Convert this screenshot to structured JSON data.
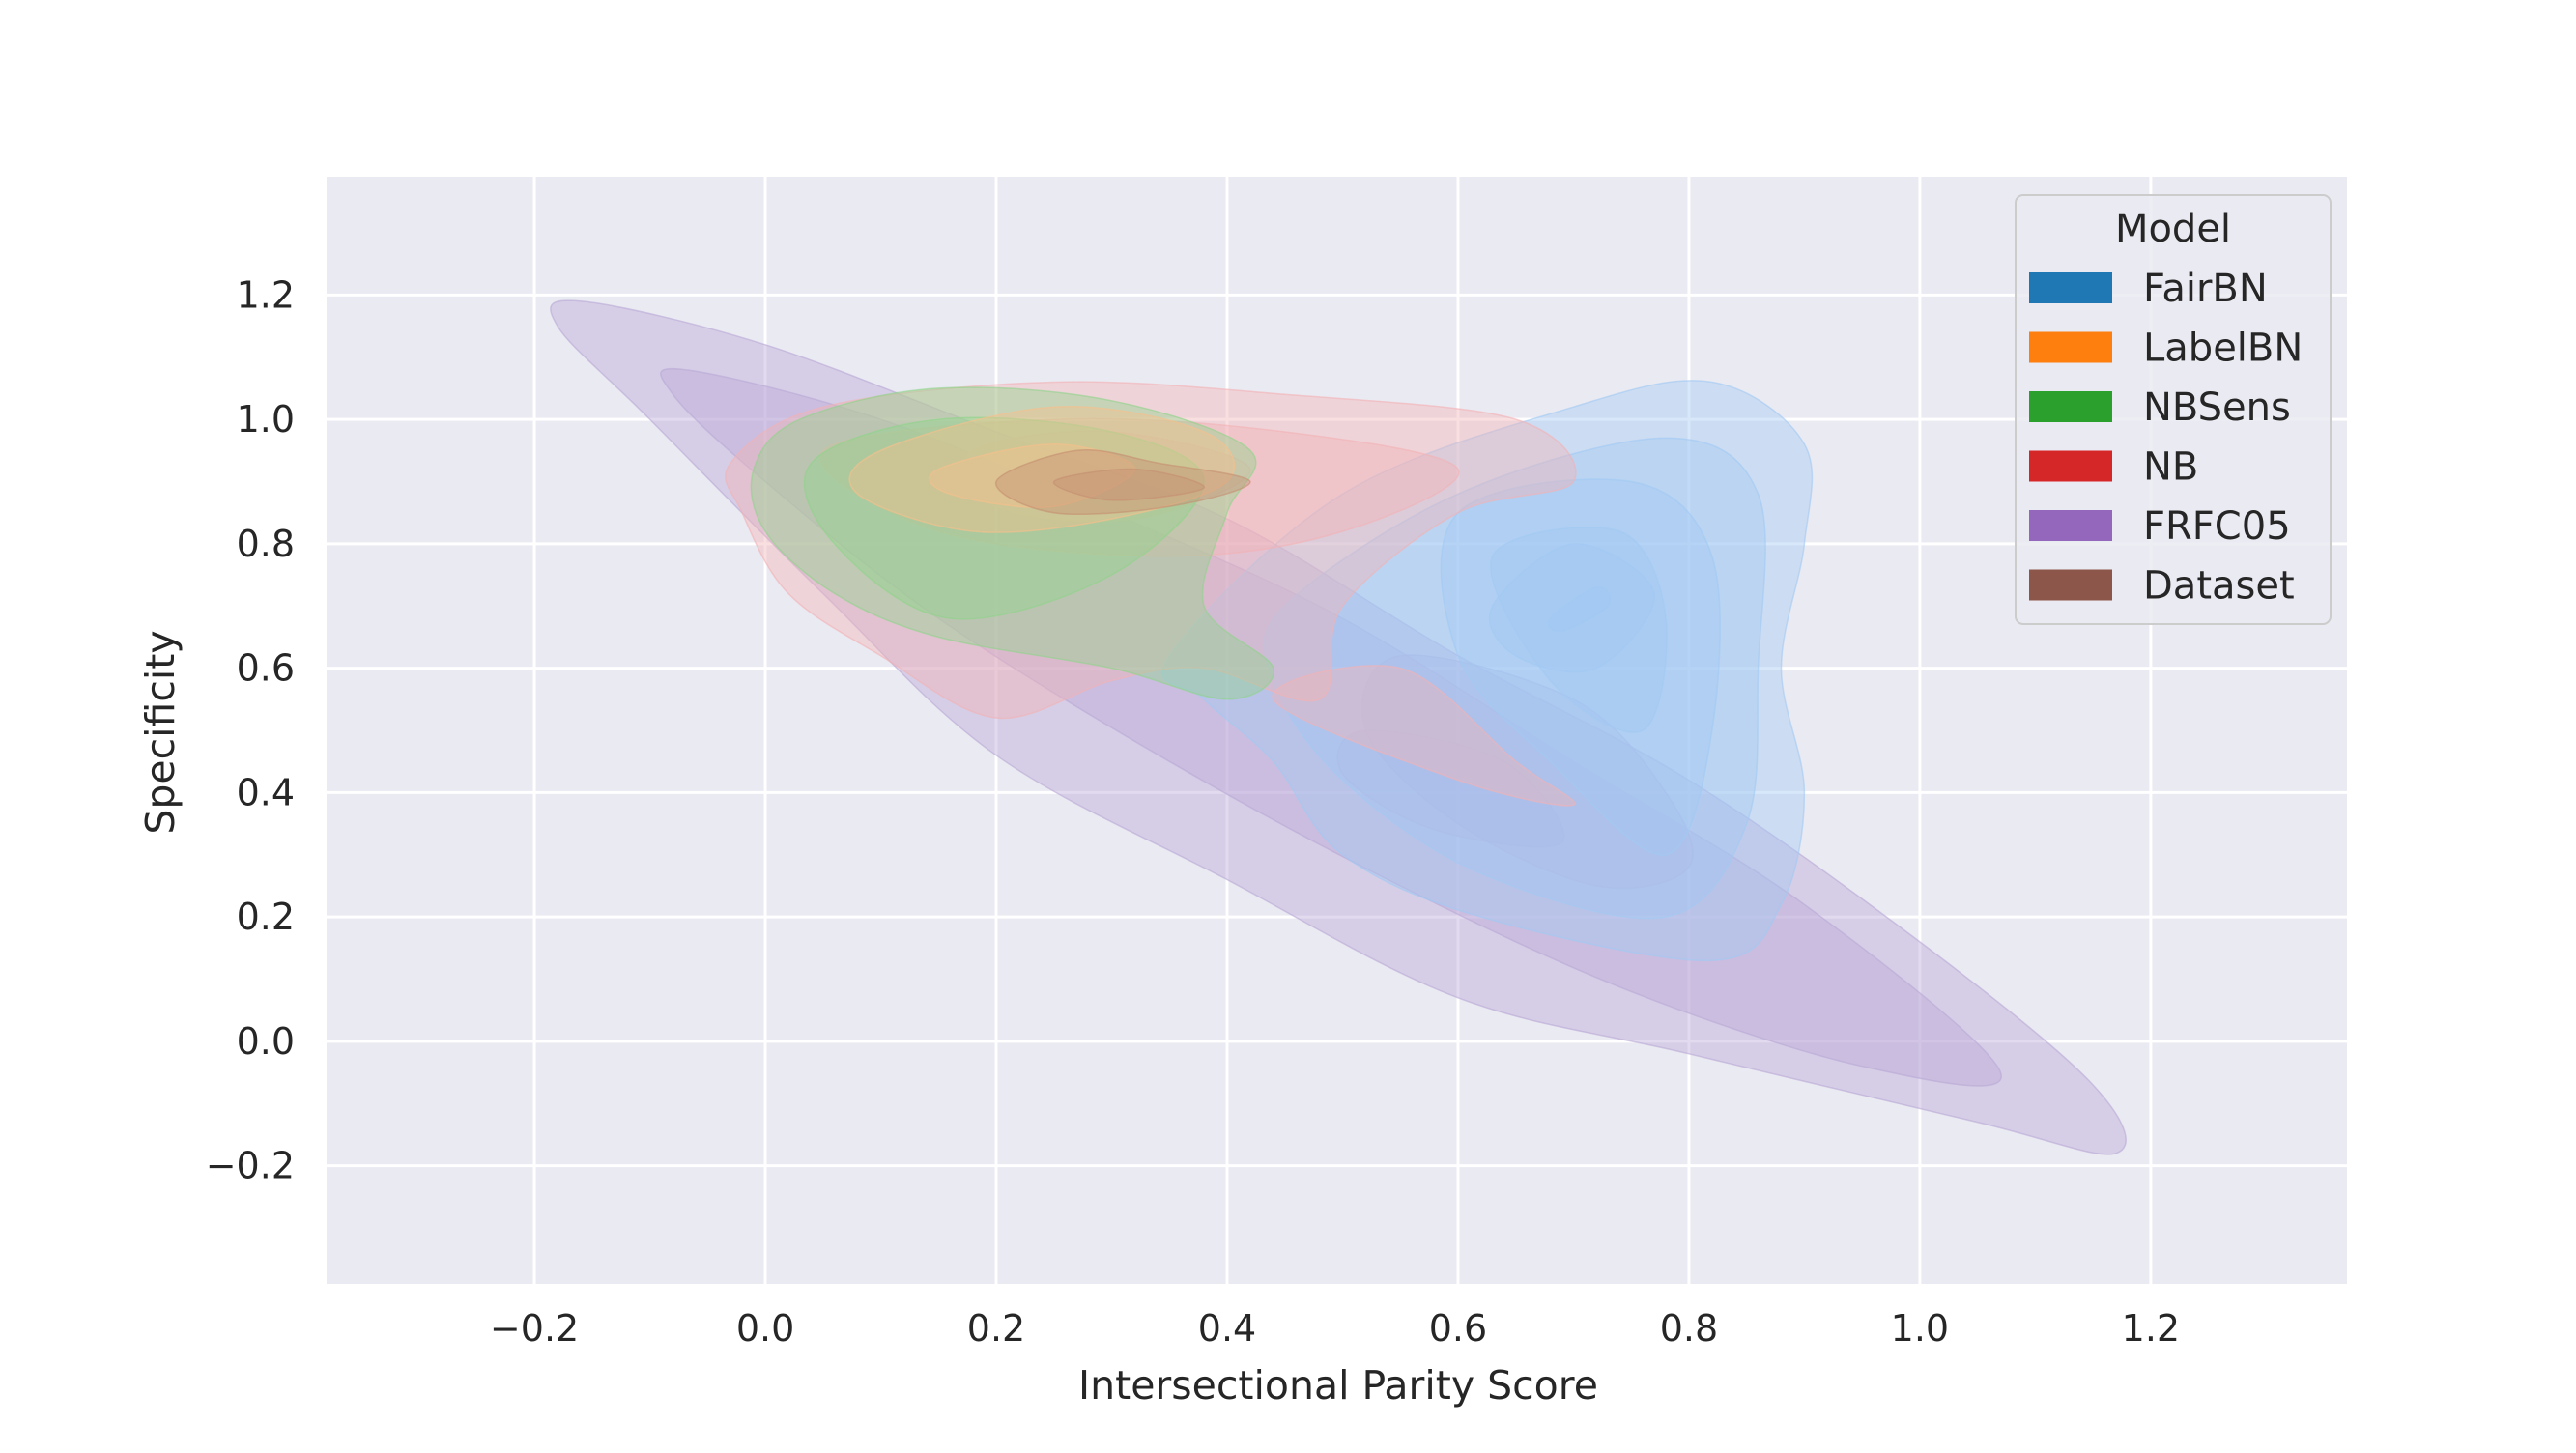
{
  "chart_data": {
    "type": "kde_contour",
    "title": "",
    "xlabel": "Intersectional Parity Score",
    "ylabel": "Specificity",
    "xlim": [
      -0.38,
      1.37
    ],
    "ylim": [
      -0.39,
      1.39
    ],
    "xticks": [
      -0.2,
      0.0,
      0.2,
      0.4,
      0.6,
      0.8,
      1.0,
      1.2
    ],
    "xtick_labels": [
      "−0.2",
      "0.0",
      "0.2",
      "0.4",
      "0.6",
      "0.8",
      "1.0",
      "1.2"
    ],
    "yticks": [
      -0.2,
      0.0,
      0.2,
      0.4,
      0.6,
      0.8,
      1.0,
      1.2
    ],
    "ytick_labels": [
      "−0.2",
      "0.0",
      "0.2",
      "0.4",
      "0.6",
      "0.8",
      "1.0",
      "1.2"
    ],
    "grid": true,
    "background": "#eaeaf2",
    "legend": {
      "title": "Model",
      "placement": "top-right",
      "entries": [
        {
          "name": "FairBN",
          "color": "#1f77b4"
        },
        {
          "name": "LabelBN",
          "color": "#ff7f0e"
        },
        {
          "name": "NBSens",
          "color": "#2ca02c"
        },
        {
          "name": "NB",
          "color": "#d62728"
        },
        {
          "name": "FRFC05",
          "color": "#9467bd"
        },
        {
          "name": "Dataset",
          "color": "#8c564b"
        }
      ]
    },
    "series": [
      {
        "name": "FRFC05",
        "color": "#b9a8d6",
        "levels": [
          [
            [
              -0.16,
              1.19
            ],
            [
              0.0,
              1.12
            ],
            [
              0.2,
              0.98
            ],
            [
              0.4,
              0.84
            ],
            [
              0.6,
              0.62
            ],
            [
              0.8,
              0.42
            ],
            [
              1.0,
              0.16
            ],
            [
              1.15,
              -0.07
            ],
            [
              1.17,
              -0.18
            ],
            [
              1.05,
              -0.13
            ],
            [
              0.8,
              -0.02
            ],
            [
              0.6,
              0.07
            ],
            [
              0.4,
              0.26
            ],
            [
              0.2,
              0.46
            ],
            [
              0.05,
              0.72
            ],
            [
              -0.1,
              1.0
            ],
            [
              -0.18,
              1.15
            ]
          ],
          [
            [
              -0.07,
              1.08
            ],
            [
              0.1,
              1.0
            ],
            [
              0.3,
              0.85
            ],
            [
              0.5,
              0.68
            ],
            [
              0.7,
              0.45
            ],
            [
              0.9,
              0.22
            ],
            [
              1.07,
              -0.05
            ],
            [
              0.95,
              -0.04
            ],
            [
              0.75,
              0.08
            ],
            [
              0.55,
              0.25
            ],
            [
              0.35,
              0.45
            ],
            [
              0.15,
              0.68
            ],
            [
              0.0,
              0.9
            ],
            [
              -0.08,
              1.04
            ]
          ],
          [
            [
              0.55,
              0.62
            ],
            [
              0.7,
              0.55
            ],
            [
              0.78,
              0.4
            ],
            [
              0.8,
              0.28
            ],
            [
              0.72,
              0.25
            ],
            [
              0.6,
              0.35
            ],
            [
              0.52,
              0.5
            ]
          ],
          [
            [
              0.52,
              0.5
            ],
            [
              0.64,
              0.45
            ],
            [
              0.69,
              0.32
            ],
            [
              0.58,
              0.34
            ],
            [
              0.5,
              0.43
            ]
          ]
        ]
      },
      {
        "name": "FairBN",
        "color": "#a1c9f4",
        "levels": [
          [
            [
              0.35,
              0.62
            ],
            [
              0.5,
              0.88
            ],
            [
              0.7,
              1.02
            ],
            [
              0.82,
              1.06
            ],
            [
              0.9,
              0.96
            ],
            [
              0.9,
              0.8
            ],
            [
              0.88,
              0.6
            ],
            [
              0.9,
              0.4
            ],
            [
              0.88,
              0.22
            ],
            [
              0.82,
              0.13
            ],
            [
              0.62,
              0.2
            ],
            [
              0.5,
              0.3
            ],
            [
              0.44,
              0.45
            ],
            [
              0.38,
              0.55
            ]
          ],
          [
            [
              0.45,
              0.7
            ],
            [
              0.6,
              0.88
            ],
            [
              0.78,
              0.97
            ],
            [
              0.86,
              0.88
            ],
            [
              0.86,
              0.6
            ],
            [
              0.85,
              0.35
            ],
            [
              0.78,
              0.2
            ],
            [
              0.62,
              0.27
            ],
            [
              0.5,
              0.42
            ],
            [
              0.44,
              0.58
            ]
          ],
          [
            [
              0.6,
              0.85
            ],
            [
              0.75,
              0.9
            ],
            [
              0.82,
              0.78
            ],
            [
              0.82,
              0.5
            ],
            [
              0.78,
              0.3
            ],
            [
              0.68,
              0.45
            ],
            [
              0.6,
              0.62
            ]
          ],
          [
            [
              0.63,
              0.78
            ],
            [
              0.74,
              0.82
            ],
            [
              0.78,
              0.68
            ],
            [
              0.76,
              0.5
            ],
            [
              0.68,
              0.58
            ]
          ],
          [
            [
              0.63,
              0.7
            ],
            [
              0.7,
              0.8
            ],
            [
              0.77,
              0.72
            ],
            [
              0.72,
              0.6
            ],
            [
              0.65,
              0.62
            ]
          ],
          [
            [
              0.68,
              0.68
            ],
            [
              0.72,
              0.73
            ],
            [
              0.73,
              0.7
            ],
            [
              0.69,
              0.66
            ]
          ]
        ]
      },
      {
        "name": "NB",
        "color": "#f2b3b5",
        "levels": [
          [
            [
              -0.03,
              0.93
            ],
            [
              0.05,
              1.02
            ],
            [
              0.25,
              1.06
            ],
            [
              0.45,
              1.04
            ],
            [
              0.65,
              1.0
            ],
            [
              0.7,
              0.9
            ],
            [
              0.6,
              0.85
            ],
            [
              0.5,
              0.7
            ],
            [
              0.48,
              0.55
            ],
            [
              0.38,
              0.6
            ],
            [
              0.3,
              0.58
            ],
            [
              0.2,
              0.52
            ],
            [
              0.1,
              0.62
            ],
            [
              0.02,
              0.72
            ],
            [
              -0.02,
              0.85
            ]
          ],
          [
            [
              0.05,
              0.95
            ],
            [
              0.25,
              1.0
            ],
            [
              0.45,
              0.98
            ],
            [
              0.6,
              0.92
            ],
            [
              0.5,
              0.82
            ],
            [
              0.35,
              0.78
            ],
            [
              0.15,
              0.82
            ]
          ],
          [
            [
              0.18,
              0.95
            ],
            [
              0.3,
              0.98
            ],
            [
              0.42,
              0.92
            ],
            [
              0.32,
              0.84
            ],
            [
              0.2,
              0.86
            ]
          ],
          [
            [
              0.44,
              0.55
            ],
            [
              0.55,
              0.6
            ],
            [
              0.65,
              0.45
            ],
            [
              0.7,
              0.38
            ],
            [
              0.6,
              0.42
            ]
          ]
        ]
      },
      {
        "name": "NBSens",
        "color": "#8fd48a",
        "levels": [
          [
            [
              -0.01,
              0.92
            ],
            [
              0.03,
              1.0
            ],
            [
              0.15,
              1.05
            ],
            [
              0.3,
              1.03
            ],
            [
              0.42,
              0.95
            ],
            [
              0.4,
              0.85
            ],
            [
              0.38,
              0.7
            ],
            [
              0.44,
              0.6
            ],
            [
              0.4,
              0.55
            ],
            [
              0.3,
              0.6
            ],
            [
              0.15,
              0.65
            ],
            [
              0.06,
              0.72
            ],
            [
              0.0,
              0.82
            ]
          ],
          [
            [
              0.04,
              0.93
            ],
            [
              0.15,
              1.0
            ],
            [
              0.3,
              0.98
            ],
            [
              0.38,
              0.9
            ],
            [
              0.3,
              0.75
            ],
            [
              0.16,
              0.68
            ],
            [
              0.06,
              0.8
            ]
          ]
        ]
      },
      {
        "name": "LabelBN",
        "color": "#f6c08c",
        "levels": [
          [
            [
              0.1,
              0.95
            ],
            [
              0.25,
              1.02
            ],
            [
              0.38,
              0.98
            ],
            [
              0.4,
              0.9
            ],
            [
              0.3,
              0.84
            ],
            [
              0.18,
              0.82
            ],
            [
              0.08,
              0.88
            ]
          ],
          [
            [
              0.15,
              0.92
            ],
            [
              0.25,
              0.96
            ],
            [
              0.32,
              0.92
            ],
            [
              0.25,
              0.86
            ],
            [
              0.16,
              0.88
            ]
          ]
        ]
      },
      {
        "name": "Dataset",
        "color": "#c58f72",
        "levels": [
          [
            [
              0.2,
              0.9
            ],
            [
              0.27,
              0.95
            ],
            [
              0.34,
              0.93
            ],
            [
              0.42,
              0.9
            ],
            [
              0.35,
              0.86
            ],
            [
              0.25,
              0.85
            ]
          ],
          [
            [
              0.25,
              0.9
            ],
            [
              0.32,
              0.92
            ],
            [
              0.38,
              0.89
            ],
            [
              0.3,
              0.87
            ]
          ]
        ]
      }
    ]
  }
}
